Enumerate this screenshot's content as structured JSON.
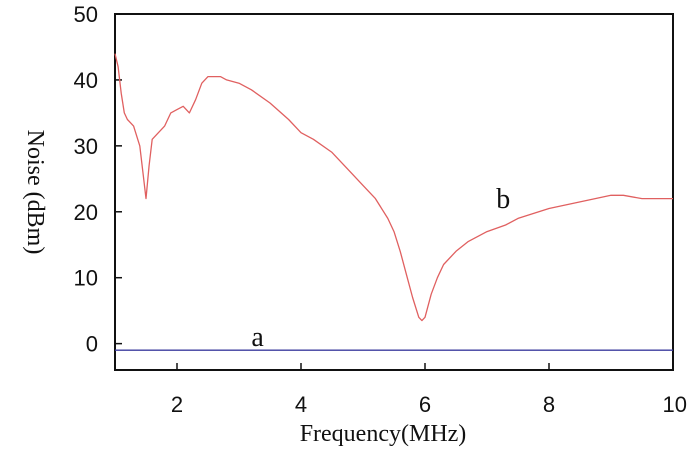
{
  "chart_data": {
    "type": "line",
    "xlabel": "Frequency(MHz)",
    "ylabel": "Noise (dBm)",
    "xlim": [
      1,
      10
    ],
    "ylim": [
      -4,
      50
    ],
    "x_ticks": [
      2,
      4,
      6,
      8,
      10
    ],
    "y_ticks": [
      0,
      10,
      20,
      30,
      40,
      50
    ],
    "grid": false,
    "legend": "none",
    "series": [
      {
        "label": "b",
        "color": "#e06060",
        "x": [
          1.0,
          1.05,
          1.1,
          1.15,
          1.2,
          1.3,
          1.4,
          1.45,
          1.5,
          1.55,
          1.6,
          1.7,
          1.8,
          1.9,
          2.0,
          2.1,
          2.2,
          2.3,
          2.4,
          2.5,
          2.6,
          2.7,
          2.8,
          3.0,
          3.2,
          3.5,
          3.8,
          4.0,
          4.2,
          4.5,
          4.8,
          5.0,
          5.2,
          5.4,
          5.5,
          5.6,
          5.7,
          5.8,
          5.9,
          5.95,
          6.0,
          6.1,
          6.2,
          6.3,
          6.5,
          6.7,
          7.0,
          7.3,
          7.5,
          8.0,
          8.5,
          9.0,
          9.2,
          9.5,
          10.0
        ],
        "y": [
          44,
          42,
          38,
          35,
          34,
          33,
          30,
          26,
          22,
          27,
          31,
          32,
          33,
          35,
          35.5,
          36,
          35,
          37,
          39.5,
          40.5,
          40.5,
          40.5,
          40,
          39.5,
          38.5,
          36.5,
          34,
          32,
          31,
          29,
          26,
          24,
          22,
          19,
          17,
          14,
          10.5,
          7,
          4,
          3.5,
          4,
          7.5,
          10,
          12,
          14,
          15.5,
          17,
          18,
          19,
          20.5,
          21.5,
          22.5,
          22.5,
          22,
          22
        ]
      },
      {
        "label": "a",
        "color": "#3b3b9e",
        "x": [
          1,
          10
        ],
        "y": [
          -1,
          -1
        ]
      }
    ],
    "annotations": [
      {
        "text": "a",
        "x": 3.2,
        "y": -1
      },
      {
        "text": "b",
        "x": 7.15,
        "y": 20
      }
    ]
  }
}
